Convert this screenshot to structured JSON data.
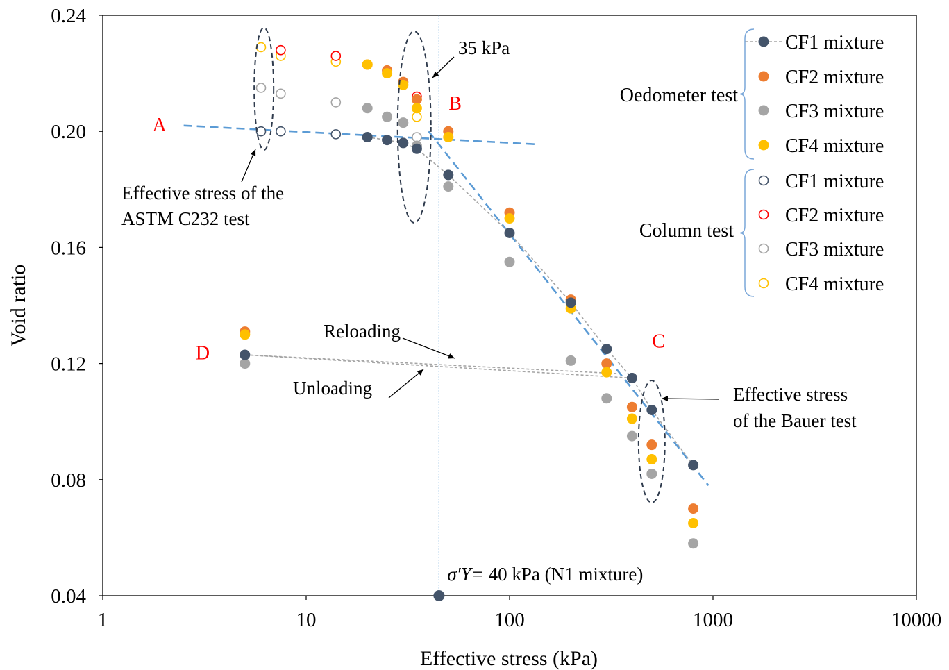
{
  "chart_data": {
    "type": "scatter",
    "title": "",
    "xlabel": "Effective stress (kPa)",
    "ylabel": "Void ratio",
    "xscale": "log",
    "xlim": [
      1,
      10000
    ],
    "ylim": [
      0.04,
      0.24
    ],
    "xticks": [
      "1",
      "10",
      "100",
      "1000",
      "10000"
    ],
    "yticks": [
      "0.04",
      "0.08",
      "0.12",
      "0.16",
      "0.20",
      "0.24"
    ],
    "grid": false,
    "legend_position": "top-right",
    "legend_groups": [
      {
        "label": "Oedometer test",
        "entries": [
          "CF1 mixture",
          "CF2 mixture",
          "CF3 mixture",
          "CF4 mixture"
        ]
      },
      {
        "label": "Column test",
        "entries": [
          "CF1 mixture",
          "CF2 mixture",
          "CF3 mixture",
          "CF4 mixture"
        ]
      }
    ],
    "series": [
      {
        "name": "CF1 mixture",
        "group": "Oedometer test",
        "marker": "filled",
        "color": "#44546a",
        "connected": true,
        "x": [
          20,
          25,
          30,
          35,
          50,
          100,
          200,
          300,
          400,
          500,
          800,
          400,
          5
        ],
        "y": [
          0.198,
          0.197,
          0.196,
          0.194,
          0.185,
          0.165,
          0.141,
          0.125,
          0.115,
          0.104,
          0.085,
          0.115,
          0.123
        ]
      },
      {
        "name": "CF2 mixture",
        "group": "Oedometer test",
        "marker": "filled",
        "color": "#ed7d31",
        "x": [
          20,
          25,
          30,
          35,
          50,
          100,
          200,
          300,
          400,
          500,
          800,
          5
        ],
        "y": [
          0.223,
          0.221,
          0.217,
          0.211,
          0.2,
          0.172,
          0.142,
          0.12,
          0.105,
          0.092,
          0.07,
          0.131
        ]
      },
      {
        "name": "CF3 mixture",
        "group": "Oedometer test",
        "marker": "filled",
        "color": "#a5a5a5",
        "x": [
          20,
          25,
          30,
          35,
          50,
          100,
          200,
          300,
          400,
          500,
          800,
          5
        ],
        "y": [
          0.208,
          0.205,
          0.203,
          0.195,
          0.181,
          0.155,
          0.121,
          0.108,
          0.095,
          0.082,
          0.058,
          0.12
        ]
      },
      {
        "name": "CF4 mixture",
        "group": "Oedometer test",
        "marker": "filled",
        "color": "#ffc000",
        "x": [
          20,
          25,
          30,
          35,
          50,
          100,
          200,
          300,
          400,
          500,
          800,
          5
        ],
        "y": [
          0.223,
          0.22,
          0.216,
          0.208,
          0.198,
          0.17,
          0.139,
          0.117,
          0.101,
          0.087,
          0.065,
          0.13
        ]
      },
      {
        "name": "CF1 mixture",
        "group": "Column test",
        "marker": "hollow",
        "color": "#44546a",
        "x": [
          6,
          7.5,
          14,
          35
        ],
        "y": [
          0.2,
          0.2,
          0.199,
          0.195
        ]
      },
      {
        "name": "CF2 mixture",
        "group": "Column test",
        "marker": "hollow",
        "color": "#ff0000",
        "x": [
          7.5,
          14,
          35
        ],
        "y": [
          0.228,
          0.226,
          0.212
        ]
      },
      {
        "name": "CF3 mixture",
        "group": "Column test",
        "marker": "hollow",
        "color": "#a5a5a5",
        "x": [
          6,
          7.5,
          14,
          35
        ],
        "y": [
          0.215,
          0.213,
          0.21,
          0.198
        ]
      },
      {
        "name": "CF4 mixture",
        "group": "Column test",
        "marker": "hollow",
        "color": "#ffc000",
        "x": [
          6,
          7.5,
          14,
          35
        ],
        "y": [
          0.229,
          0.226,
          0.224,
          0.205
        ]
      }
    ],
    "fit_lines": [
      {
        "label": "A-B",
        "x": [
          2.5,
          140
        ],
        "y": [
          0.202,
          0.1955
        ],
        "color": "#5b9bd5"
      },
      {
        "label": "B-C",
        "x": [
          40,
          950
        ],
        "y": [
          0.2,
          0.078
        ],
        "color": "#5b9bd5"
      }
    ],
    "unload_reload": [
      {
        "x": [
          400,
          5
        ],
        "y": [
          0.115,
          0.123
        ]
      },
      {
        "x": [
          5,
          350
        ],
        "y": [
          0.123,
          0.1165
        ]
      }
    ],
    "yield_point": {
      "x": 45,
      "y": 0.04,
      "label": "40 kPa (N1 mixture)",
      "symbol": "σ′Y="
    },
    "point_labels": [
      {
        "text": "A",
        "x": 1.9,
        "y": 0.2,
        "color": "#ff0000"
      },
      {
        "text": "B",
        "x": 54,
        "y": 0.2075,
        "color": "#ff0000"
      },
      {
        "text": "C",
        "x": 540,
        "y": 0.1255,
        "color": "#ff0000"
      },
      {
        "text": "D",
        "x": 3.1,
        "y": 0.1215,
        "color": "#ff0000"
      }
    ],
    "annotations": [
      {
        "id": "astm",
        "lines": [
          "Effective stress of the",
          "ASTM C232 test"
        ]
      },
      {
        "id": "kpa35",
        "lines": [
          "35 kPa"
        ]
      },
      {
        "id": "reloading",
        "lines": [
          "Reloading"
        ]
      },
      {
        "id": "unloading",
        "lines": [
          "Unloading"
        ]
      },
      {
        "id": "bauer",
        "lines": [
          "Effective stress",
          "of the Bauer test"
        ]
      }
    ]
  }
}
